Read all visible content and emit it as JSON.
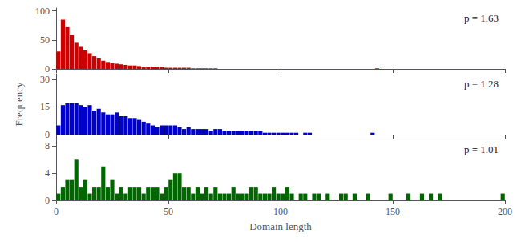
{
  "chart_data": [
    {
      "type": "histogram",
      "annotation": "p = 1.63",
      "color": "#CC0000",
      "bins": [
        0,
        2,
        4,
        6,
        8,
        10,
        12,
        14,
        16,
        18,
        20,
        22,
        24,
        26,
        28,
        30,
        32,
        34,
        36,
        38,
        40,
        42,
        44,
        46,
        48,
        50,
        52,
        54,
        56,
        58,
        60,
        62,
        64,
        66,
        68,
        70,
        72,
        74,
        76,
        78,
        80,
        82,
        84,
        86,
        88,
        90,
        92,
        94,
        96,
        98,
        100,
        102,
        104,
        106,
        108,
        110,
        112,
        114,
        116,
        118,
        120,
        122,
        124,
        126,
        128,
        130,
        132,
        134,
        136,
        138,
        140,
        142,
        144,
        146,
        148,
        150,
        152,
        154,
        156,
        158,
        160,
        162,
        164,
        166,
        168,
        170,
        172,
        174,
        176,
        178,
        180,
        182,
        184,
        186,
        188,
        190,
        192,
        194,
        196,
        198,
        200
      ],
      "values": [
        30,
        85,
        72,
        58,
        45,
        38,
        32,
        27,
        22,
        18,
        14,
        12,
        10,
        9,
        8,
        7,
        6,
        6,
        5,
        4,
        4,
        4,
        3,
        3,
        2,
        2,
        2,
        2,
        2,
        2,
        1,
        1,
        1,
        1,
        1,
        1,
        0,
        0,
        0,
        0,
        0,
        0,
        0,
        0,
        0,
        0,
        0,
        0,
        0,
        0,
        0,
        0,
        0,
        0,
        0,
        0,
        0,
        0,
        0,
        0,
        0,
        0,
        0,
        0,
        0,
        0,
        0,
        0,
        0,
        0,
        0,
        1,
        0,
        0,
        0,
        0,
        0,
        0,
        0,
        0,
        0,
        0,
        0,
        0,
        0,
        0,
        0,
        0,
        0,
        0,
        0,
        0,
        0,
        0,
        0,
        0,
        0,
        0,
        0,
        0
      ],
      "xlim": [
        0,
        200
      ],
      "xticks": [
        0,
        50,
        100,
        150,
        200
      ],
      "ylim": [
        0,
        105
      ],
      "yticks": [
        0,
        50,
        100
      ],
      "grid": false,
      "tick_labels": "y"
    },
    {
      "type": "histogram",
      "annotation": "p = 1.28",
      "color": "#0000CC",
      "ylabel": "Frequency",
      "bins": [
        0,
        2,
        4,
        6,
        8,
        10,
        12,
        14,
        16,
        18,
        20,
        22,
        24,
        26,
        28,
        30,
        32,
        34,
        36,
        38,
        40,
        42,
        44,
        46,
        48,
        50,
        52,
        54,
        56,
        58,
        60,
        62,
        64,
        66,
        68,
        70,
        72,
        74,
        76,
        78,
        80,
        82,
        84,
        86,
        88,
        90,
        92,
        94,
        96,
        98,
        100,
        102,
        104,
        106,
        108,
        110,
        112,
        114,
        116,
        118,
        120,
        122,
        124,
        126,
        128,
        130,
        132,
        134,
        136,
        138,
        140,
        142,
        144,
        146,
        148,
        150,
        152,
        154,
        156,
        158,
        160,
        162,
        164,
        166,
        168,
        170,
        172,
        174,
        176,
        178,
        180,
        182,
        184,
        186,
        188,
        190,
        192,
        194,
        196,
        198,
        200
      ],
      "values": [
        5,
        16,
        17,
        17,
        17,
        16,
        15,
        16,
        13,
        14,
        12,
        11,
        11,
        12,
        10,
        10,
        9,
        9,
        8,
        7,
        6,
        5,
        4,
        5,
        5,
        5,
        5,
        4,
        3,
        4,
        3,
        3,
        3,
        3,
        2,
        3,
        3,
        2,
        2,
        2,
        2,
        2,
        2,
        2,
        2,
        2,
        1,
        1,
        1,
        1,
        1,
        1,
        1,
        1,
        0,
        1,
        1,
        0,
        0,
        0,
        0,
        0,
        0,
        0,
        0,
        0,
        0,
        0,
        0,
        0,
        1,
        0,
        0,
        0,
        0,
        0,
        0,
        0,
        0,
        0,
        0,
        0,
        0,
        0,
        0,
        0,
        0,
        0,
        0,
        0,
        0,
        0,
        0,
        0,
        0,
        0,
        0,
        0,
        0,
        0
      ],
      "xlim": [
        0,
        200
      ],
      "xticks": [
        0,
        50,
        100,
        150,
        200
      ],
      "ylim": [
        0,
        33
      ],
      "yticks": [
        0,
        15,
        30
      ],
      "grid": false,
      "tick_labels": "y"
    },
    {
      "type": "histogram",
      "annotation": "p = 1.01",
      "color": "#006600",
      "xlabel": "Domain length",
      "bins": [
        0,
        2,
        4,
        6,
        8,
        10,
        12,
        14,
        16,
        18,
        20,
        22,
        24,
        26,
        28,
        30,
        32,
        34,
        36,
        38,
        40,
        42,
        44,
        46,
        48,
        50,
        52,
        54,
        56,
        58,
        60,
        62,
        64,
        66,
        68,
        70,
        72,
        74,
        76,
        78,
        80,
        82,
        84,
        86,
        88,
        90,
        92,
        94,
        96,
        98,
        100,
        102,
        104,
        106,
        108,
        110,
        112,
        114,
        116,
        118,
        120,
        122,
        124,
        126,
        128,
        130,
        132,
        134,
        136,
        138,
        140,
        142,
        144,
        146,
        148,
        150,
        152,
        154,
        156,
        158,
        160,
        162,
        164,
        166,
        168,
        170,
        172,
        174,
        176,
        178,
        180,
        182,
        184,
        186,
        188,
        190,
        192,
        194,
        196,
        198,
        200
      ],
      "values": [
        1,
        2,
        3,
        3,
        6,
        2,
        3,
        1,
        2,
        2,
        5,
        2,
        3,
        1,
        2,
        1,
        2,
        2,
        2,
        1,
        2,
        2,
        2,
        1,
        2,
        3,
        4,
        4,
        2,
        2,
        1,
        2,
        1,
        2,
        1,
        2,
        1,
        1,
        1,
        2,
        1,
        1,
        1,
        2,
        2,
        1,
        1,
        1,
        2,
        1,
        1,
        2,
        1,
        0,
        1,
        1,
        0,
        1,
        1,
        0,
        1,
        0,
        0,
        1,
        1,
        0,
        1,
        0,
        0,
        1,
        0,
        0,
        0,
        0,
        1,
        0,
        0,
        0,
        1,
        0,
        0,
        1,
        0,
        1,
        0,
        1,
        0,
        0,
        0,
        0,
        0,
        0,
        0,
        0,
        0,
        0,
        0,
        0,
        0,
        1
      ],
      "xlim": [
        0,
        200
      ],
      "xticks": [
        0,
        50,
        100,
        150,
        200
      ],
      "ylim": [
        0,
        9
      ],
      "yticks": [
        0,
        4,
        8
      ],
      "grid": false
    }
  ]
}
